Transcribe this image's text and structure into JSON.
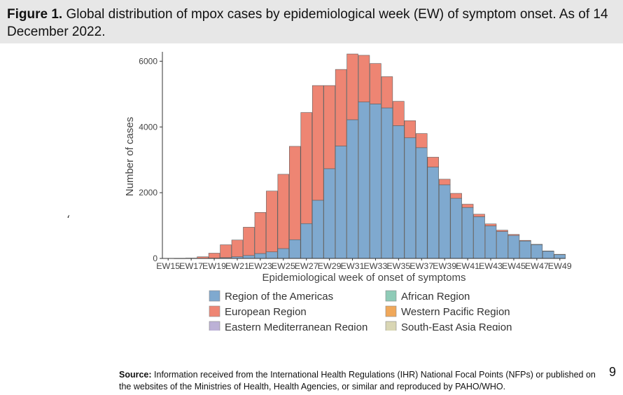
{
  "figure": {
    "label": "Figure 1.",
    "caption": "Global distribution of mpox cases by epidemiological week (EW) of symptom onset. As of 14 December 2022."
  },
  "stray_mark": "‘",
  "source": {
    "label": "Source:",
    "text": "Information received from the International Health Regulations (IHR) National Focal Points (NFPs) or published on the websites of the Ministries of Health, Health Agencies, or similar and reproduced by PAHO/WHO."
  },
  "page_number": "9",
  "chart_data": {
    "type": "bar",
    "stacked": true,
    "xlabel": "Epidemiological week of onset of symptoms",
    "ylabel": "Number of cases",
    "ylim": [
      0,
      6200
    ],
    "yticks": [
      0,
      2000,
      4000,
      6000
    ],
    "x_tick_labels": [
      "EW15",
      "EW17",
      "EW19",
      "EW21",
      "EW23",
      "EW25",
      "EW27",
      "EW29",
      "EW31",
      "EW33",
      "EW35",
      "EW37",
      "EW39",
      "EW41",
      "EW43",
      "EW45",
      "EW47",
      "EW49"
    ],
    "categories": [
      "EW15",
      "EW16",
      "EW17",
      "EW18",
      "EW19",
      "EW20",
      "EW21",
      "EW22",
      "EW23",
      "EW24",
      "EW25",
      "EW26",
      "EW27",
      "EW28",
      "EW29",
      "EW30",
      "EW31",
      "EW32",
      "EW33",
      "EW34",
      "EW35",
      "EW36",
      "EW37",
      "EW38",
      "EW39",
      "EW40",
      "EW41",
      "EW42",
      "EW43",
      "EW44",
      "EW45",
      "EW46",
      "EW47",
      "EW48",
      "EW49"
    ],
    "series": [
      {
        "name": "Region of the Americas",
        "color": "#7fa9cf",
        "values": [
          0,
          0,
          0,
          0,
          10,
          25,
          50,
          90,
          150,
          200,
          300,
          570,
          1060,
          1770,
          2730,
          3420,
          4220,
          4760,
          4700,
          4580,
          4040,
          3670,
          3370,
          2780,
          2240,
          1830,
          1550,
          1270,
          990,
          820,
          700,
          530,
          420,
          220,
          120
        ]
      },
      {
        "name": "European Region",
        "color": "#ee8573",
        "values": [
          0,
          3,
          10,
          50,
          150,
          390,
          510,
          860,
          1250,
          1850,
          2260,
          2840,
          3380,
          3490,
          2530,
          2330,
          2000,
          1420,
          1230,
          950,
          740,
          520,
          430,
          300,
          170,
          150,
          100,
          75,
          60,
          40,
          30,
          20,
          10,
          8,
          5
        ]
      },
      {
        "name": "Eastern Mediterranean Region",
        "color": "#bcb1d6",
        "values": [
          0,
          0,
          0,
          0,
          0,
          0,
          0,
          0,
          0,
          0,
          0,
          0,
          0,
          0,
          0,
          0,
          0,
          0,
          0,
          0,
          0,
          0,
          0,
          0,
          0,
          0,
          0,
          0,
          0,
          0,
          0,
          0,
          0,
          0,
          0
        ]
      },
      {
        "name": "African Region",
        "color": "#8fcbb7",
        "values": [
          0,
          0,
          0,
          0,
          0,
          0,
          0,
          0,
          0,
          0,
          0,
          0,
          0,
          0,
          0,
          0,
          0,
          0,
          0,
          0,
          0,
          0,
          0,
          0,
          0,
          0,
          0,
          0,
          0,
          0,
          0,
          0,
          0,
          0,
          0
        ]
      },
      {
        "name": "Western Pacific Region",
        "color": "#f0a85a",
        "values": [
          0,
          0,
          0,
          0,
          0,
          0,
          0,
          0,
          0,
          0,
          0,
          0,
          0,
          0,
          0,
          0,
          0,
          0,
          0,
          0,
          0,
          0,
          0,
          0,
          0,
          0,
          0,
          0,
          0,
          0,
          0,
          0,
          0,
          0,
          0
        ]
      },
      {
        "name": "South-East Asia Region",
        "color": "#d9d6b4",
        "values": [
          0,
          0,
          0,
          0,
          0,
          0,
          0,
          0,
          0,
          0,
          0,
          0,
          0,
          0,
          0,
          0,
          0,
          0,
          0,
          0,
          0,
          0,
          0,
          0,
          0,
          0,
          0,
          0,
          0,
          0,
          0,
          0,
          0,
          0,
          0
        ]
      }
    ],
    "legend_layout": [
      [
        "Region of the Americas",
        "African Region"
      ],
      [
        "European Region",
        "Western Pacific Region"
      ],
      [
        "Eastern Mediterranean Region",
        "South-East Asia Region"
      ]
    ],
    "legend_position": "bottom",
    "grid": false
  }
}
